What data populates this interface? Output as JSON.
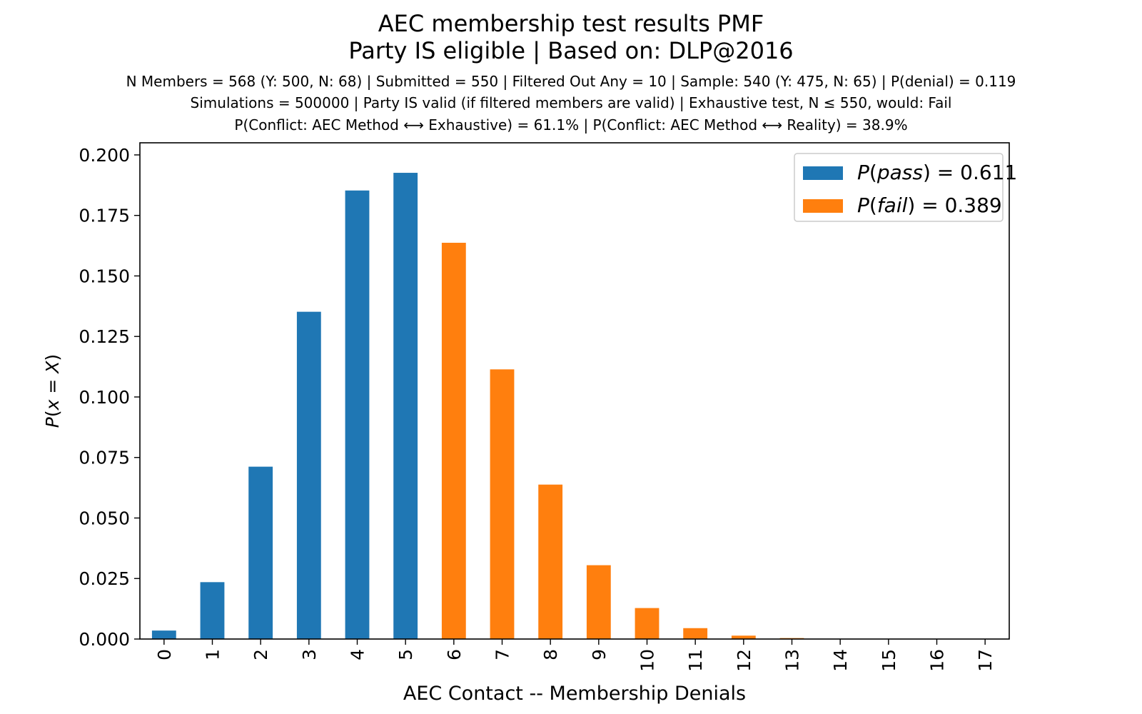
{
  "header": {
    "title_line1": "AEC membership test results PMF",
    "title_line2": "Party IS eligible | Based on: DLP@2016",
    "info_line1": "N Members = 568 (Y: 500, N: 68) | Submitted = 550 | Filtered Out Any = 10 | Sample: 540 (Y: 475, N: 65) | P(denial) = 0.119",
    "info_line2": "Simulations = 500000 | Party IS valid (if filtered members are valid) | Exhaustive test, N ≤ 550, would: Fail",
    "info_line3": "P(Conflict: AEC Method ⟷ Exhaustive) = 61.1% | P(Conflict: AEC Method ⟷ Reality) = 38.9%"
  },
  "chart_data": {
    "type": "bar",
    "title": "AEC membership test results PMF",
    "xlabel": "AEC Contact -- Membership Denials",
    "ylabel": "P(x = X)",
    "ylim": [
      0,
      0.205
    ],
    "yticks": [
      "0.000",
      "0.025",
      "0.050",
      "0.075",
      "0.100",
      "0.125",
      "0.150",
      "0.175",
      "0.200"
    ],
    "categories": [
      "0",
      "1",
      "2",
      "3",
      "4",
      "5",
      "6",
      "7",
      "8",
      "9",
      "10",
      "11",
      "12",
      "13",
      "14",
      "15",
      "16",
      "17"
    ],
    "values": [
      0.0035,
      0.0235,
      0.0712,
      0.1352,
      0.1853,
      0.1926,
      0.1637,
      0.1114,
      0.0638,
      0.0305,
      0.0128,
      0.0045,
      0.0014,
      0.0004,
      0.0001,
      2e-05,
      0.0,
      0.0
    ],
    "pass_categories_upto": 5,
    "legend": {
      "placement": "top-right",
      "entries": [
        {
          "label_prefix": "P(",
          "label_italic": "pass",
          "label_suffix": ") = 0.611",
          "color": "#1f77b4"
        },
        {
          "label_prefix": "P(",
          "label_italic": "fail",
          "label_suffix": ") = 0.389",
          "color": "#ff7f0e"
        }
      ]
    },
    "grid": false
  }
}
